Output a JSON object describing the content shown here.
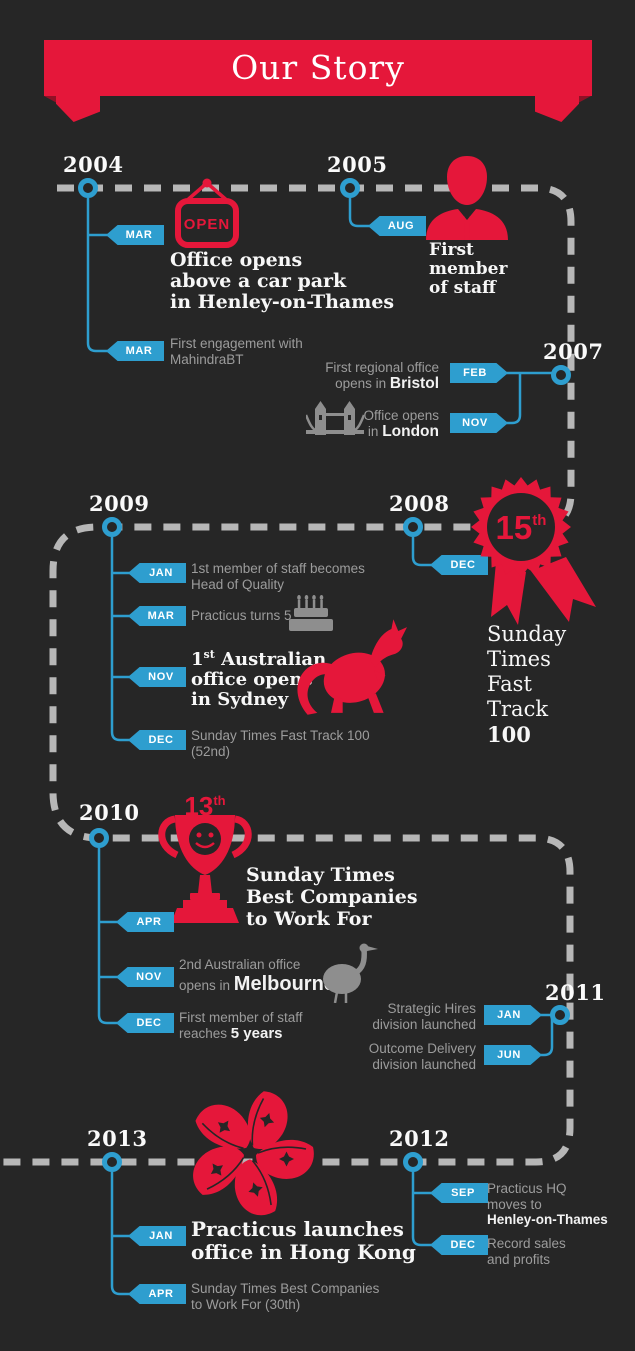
{
  "banner": {
    "title": "Our Story"
  },
  "colors": {
    "background": "#262626",
    "accent_red": "#e5173a",
    "accent_blue": "#2e9ecf",
    "dash_gray": "#b7b7b7",
    "text_gray": "#9c9c9c",
    "text_white": "#f5f5f5"
  },
  "timeline": {
    "y2004": {
      "year": "2004",
      "mar1_month": "MAR",
      "open_sign": "OPEN",
      "title1": "Office opens",
      "title2": "above a car park",
      "title3": "in Henley-on-Thames",
      "mar2_month": "MAR",
      "sub1": "First engagement with",
      "sub2": "MahindraBT"
    },
    "y2005": {
      "year": "2005",
      "aug_month": "AUG",
      "title1": "First",
      "title2": "member",
      "title3": "of staff"
    },
    "y2007": {
      "year": "2007",
      "feb_month": "FEB",
      "feb_line1": "First regional office",
      "feb_pre": "opens in ",
      "feb_bold": "Bristol",
      "nov_month": "NOV",
      "nov_line1": "Office opens",
      "nov_pre": "in ",
      "nov_bold": "London"
    },
    "y2008": {
      "year": "2008",
      "dec_month": "DEC",
      "badge_number": "15",
      "badge_ordinal": "th",
      "award1": "Sunday",
      "award2": "Times",
      "award3": "Fast",
      "award4": "Track",
      "award5": "100"
    },
    "y2009": {
      "year": "2009",
      "jan_month": "JAN",
      "jan_line1": "1st member of staff becomes",
      "jan_line2": "Head of Quality",
      "mar_month": "MAR",
      "mar_text": "Practicus turns 5",
      "nov_month": "NOV",
      "nov_num": "1",
      "nov_ordinal": "st",
      "nov_rest": " Australian",
      "nov_line2": "office opens",
      "nov_line3": "in Sydney",
      "dec_month": "DEC",
      "dec_line1": "Sunday Times Fast Track 100",
      "dec_line2": "(52nd)"
    },
    "y2010": {
      "year": "2010",
      "trophy_number": "13",
      "trophy_ordinal": "th",
      "award1": "Sunday Times",
      "award2": "Best Companies",
      "award3": "to Work For",
      "apr_month": "APR",
      "nov_month": "NOV",
      "nov_line1": "2nd Australian office",
      "nov_pre": "opens in ",
      "nov_bold": "Melbourne",
      "dec_month": "DEC",
      "dec_line1": "First member of staff",
      "dec_pre": "reaches ",
      "dec_bold": "5 years"
    },
    "y2011": {
      "year": "2011",
      "jan_month": "JAN",
      "jan_line1": "Strategic Hires",
      "jan_line2": "division launched",
      "jun_month": "JUN",
      "jun_line1": "Outcome Delivery",
      "jun_line2": "division launched"
    },
    "y2012": {
      "year": "2012",
      "sep_month": "SEP",
      "sep_line1": "Practicus HQ",
      "sep_line2": "moves to",
      "sep_bold": "Henley-on-Thames",
      "dec_month": "DEC",
      "dec_line1": "Record sales",
      "dec_line2": "and profits"
    },
    "y2013": {
      "year": "2013",
      "jan_month": "JAN",
      "title1": "Practicus launches",
      "title2": "office in Hong Kong",
      "apr_month": "APR",
      "apr_line1": "Sunday Times Best Companies",
      "apr_line2": "to Work For (30th)"
    }
  }
}
